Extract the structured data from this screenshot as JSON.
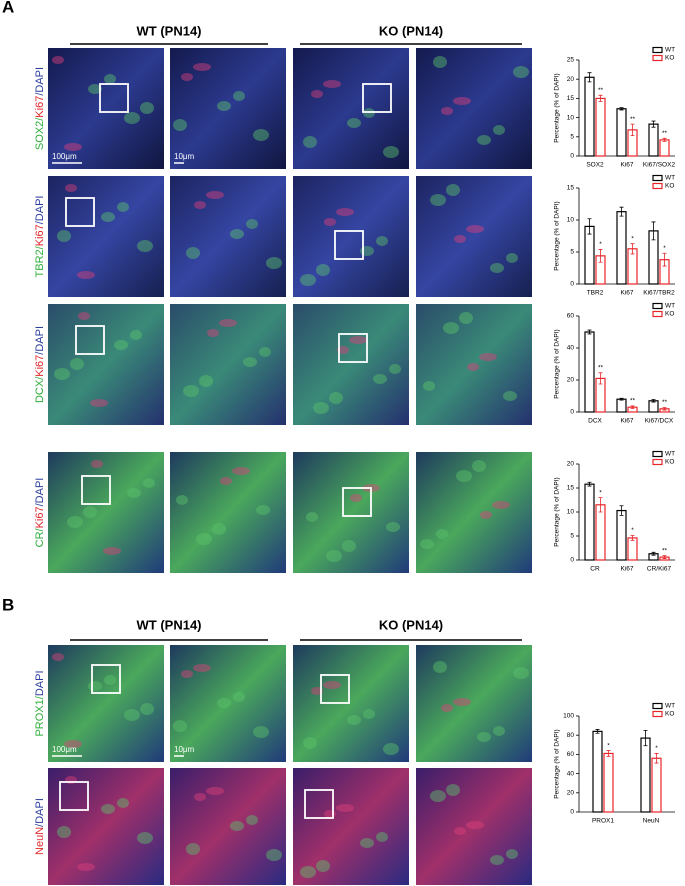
{
  "panel_a": {
    "label": "A",
    "headers": [
      "WT (PN14)",
      "KO (PN14)"
    ],
    "row_labels": [
      [
        {
          "text": "SOX2/",
          "color": "#2fae3a"
        },
        {
          "text": "Ki67",
          "color": "#e0262a"
        },
        {
          "text": "/DAPI",
          "color": "#2a3c9c"
        }
      ],
      [
        {
          "text": "TBR2/",
          "color": "#2fae3a"
        },
        {
          "text": "Ki67",
          "color": "#e0262a"
        },
        {
          "text": "/DAPI",
          "color": "#2a3c9c"
        }
      ],
      [
        {
          "text": "DCX/",
          "color": "#2fae3a"
        },
        {
          "text": "Ki67",
          "color": "#e0262a"
        },
        {
          "text": "/DAPI",
          "color": "#2a3c9c"
        }
      ],
      [
        {
          "text": "CR/",
          "color": "#2fae3a"
        },
        {
          "text": "Ki67",
          "color": "#e0262a"
        },
        {
          "text": "/DAPI",
          "color": "#2a3c9c"
        }
      ]
    ],
    "scale_bars": [
      "100μm",
      "10μm"
    ]
  },
  "panel_b": {
    "label": "B",
    "headers": [
      "WT (PN14)",
      "KO (PN14)"
    ],
    "row_labels": [
      [
        {
          "text": "PROX1/",
          "color": "#2fae3a"
        },
        {
          "text": "DAPI",
          "color": "#2a3c9c"
        }
      ],
      [
        {
          "text": "NeuN",
          "color": "#e0262a"
        },
        {
          "text": "/DAPI",
          "color": "#2a3c9c"
        }
      ]
    ],
    "scale_bars": [
      "100μm",
      "10μm"
    ]
  },
  "chart_data": [
    {
      "type": "bar",
      "ylabel": "Percentage (% of DAPI)",
      "categories": [
        "SOX2",
        "Ki67",
        "Ki67/SOX2"
      ],
      "series": [
        {
          "name": "WT",
          "color": "#000000",
          "values": [
            20.5,
            12.3,
            8.3
          ],
          "errors": [
            1.2,
            0.3,
            0.8
          ]
        },
        {
          "name": "KO",
          "color": "#e8262a",
          "values": [
            15,
            6.8,
            4.2
          ],
          "errors": [
            0.8,
            1.5,
            0.4
          ]
        }
      ],
      "significance": [
        "**",
        "**",
        "**"
      ],
      "ylim": [
        0,
        25
      ],
      "yticks": [
        0,
        5,
        10,
        15,
        20,
        25
      ]
    },
    {
      "type": "bar",
      "ylabel": "Percentage (% of DAPI)",
      "categories": [
        "TBR2",
        "Ki67",
        "Ki67/TBR2"
      ],
      "series": [
        {
          "name": "WT",
          "color": "#000000",
          "values": [
            9,
            11.3,
            8.3
          ],
          "errors": [
            1.2,
            0.7,
            1.4
          ]
        },
        {
          "name": "KO",
          "color": "#e8262a",
          "values": [
            4.4,
            5.5,
            3.8
          ],
          "errors": [
            1.0,
            0.8,
            1.0
          ]
        }
      ],
      "significance": [
        "*",
        "*",
        "*"
      ],
      "ylim": [
        0,
        15
      ],
      "yticks": [
        0,
        5,
        10,
        15
      ]
    },
    {
      "type": "bar",
      "ylabel": "Percentage (% of DAPI)",
      "categories": [
        "DCX",
        "Ki67",
        "Ki67/DCX"
      ],
      "series": [
        {
          "name": "WT",
          "color": "#000000",
          "values": [
            50,
            8,
            7
          ],
          "errors": [
            1.2,
            0.6,
            0.8
          ]
        },
        {
          "name": "KO",
          "color": "#e8262a",
          "values": [
            21,
            3,
            2
          ],
          "errors": [
            3.5,
            0.8,
            0.8
          ]
        }
      ],
      "significance": [
        "**",
        "**",
        "**"
      ],
      "ylim": [
        0,
        60
      ],
      "yticks": [
        0,
        20,
        40,
        60
      ]
    },
    {
      "type": "bar",
      "ylabel": "Percentage (% of DAPI)",
      "categories": [
        "CR",
        "Ki67",
        "CR/Ki67"
      ],
      "series": [
        {
          "name": "WT",
          "color": "#000000",
          "values": [
            15.8,
            10.3,
            1.3
          ],
          "errors": [
            0.4,
            1.0,
            0.3
          ]
        },
        {
          "name": "KO",
          "color": "#e8262a",
          "values": [
            11.5,
            4.6,
            0.6
          ],
          "errors": [
            1.5,
            0.5,
            0.3
          ]
        }
      ],
      "significance": [
        "*",
        "*",
        "**"
      ],
      "ylim": [
        0,
        20
      ],
      "yticks": [
        0,
        5,
        10,
        15,
        20
      ]
    },
    {
      "type": "bar",
      "ylabel": "Percentage (% of DAPI)",
      "categories": [
        "PROX1",
        "NeuN"
      ],
      "series": [
        {
          "name": "WT",
          "color": "#000000",
          "values": [
            84,
            77
          ],
          "errors": [
            2,
            8
          ]
        },
        {
          "name": "KO",
          "color": "#e8262a",
          "values": [
            61,
            56
          ],
          "errors": [
            3,
            5
          ]
        }
      ],
      "significance": [
        "*",
        "*"
      ],
      "ylim": [
        0,
        100
      ],
      "yticks": [
        0,
        20,
        40,
        60,
        80,
        100
      ]
    }
  ]
}
